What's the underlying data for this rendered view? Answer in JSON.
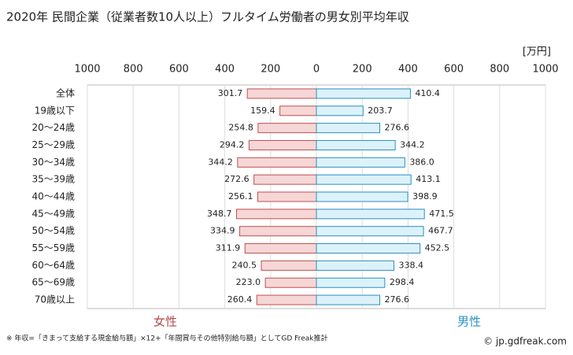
{
  "chart_data": {
    "type": "butterfly-bar",
    "title": "2020年 民間企業（従業者数10人以上）フルタイム労働者の男女別平均年収",
    "unit_label": "[万円]",
    "categories": [
      "全体",
      "19歳以下",
      "20～24歳",
      "25～29歳",
      "30～34歳",
      "35～39歳",
      "40～44歳",
      "45～49歳",
      "50～54歳",
      "55～59歳",
      "60～64歳",
      "65～69歳",
      "70歳以上"
    ],
    "series": [
      {
        "name": "女性",
        "color": "#f6d6d6",
        "edgecolor": "#c0504d",
        "label_color": "#b24a47",
        "values": [
          301.7,
          159.4,
          254.8,
          294.2,
          344.2,
          272.6,
          256.1,
          348.7,
          334.9,
          311.9,
          240.5,
          223.0,
          260.4
        ],
        "value_labels": [
          "301.7",
          "159.4",
          "254.8",
          "294.2",
          "344.2",
          "272.6",
          "256.1",
          "348.7",
          "334.9",
          "311.9",
          "240.5",
          "223.0",
          "260.4"
        ]
      },
      {
        "name": "男性",
        "color": "#dcf2fb",
        "edgecolor": "#2a8fc4",
        "label_color": "#2a8fc4",
        "values": [
          410.4,
          203.7,
          276.6,
          344.2,
          386.0,
          413.1,
          398.9,
          471.5,
          467.7,
          452.5,
          338.4,
          298.4,
          276.6
        ],
        "value_labels": [
          "410.4",
          "203.7",
          "276.6",
          "344.2",
          "386.0",
          "413.1",
          "398.9",
          "471.5",
          "467.7",
          "452.5",
          "338.4",
          "298.4",
          "276.6"
        ]
      }
    ],
    "xlim": [
      -1000,
      1000
    ],
    "xticks": [
      {
        "value": -1000,
        "label": "1000"
      },
      {
        "value": -800,
        "label": "800"
      },
      {
        "value": -600,
        "label": "600"
      },
      {
        "value": -400,
        "label": "400"
      },
      {
        "value": -200,
        "label": "200"
      },
      0,
      200,
      400,
      600,
      800,
      1000
    ],
    "grid": true,
    "footnote": "※ 年収=「きまって支給する現金給与額」×12+「年間賞与その他特別給与額」としてGD Freak推計",
    "credit": "© jp.gdfreak.com"
  }
}
